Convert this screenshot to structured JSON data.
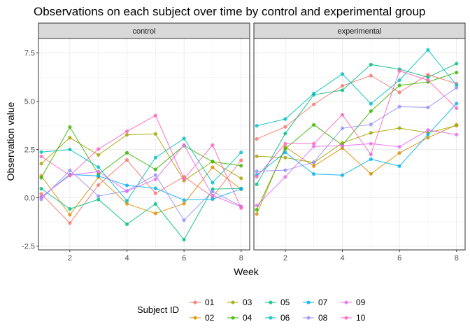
{
  "chart_data": {
    "type": "line",
    "title": "Observations on each subject over time by control and experimental group",
    "xlabel": "Week",
    "ylabel": "Observation value",
    "xlim": [
      0.9,
      8.3
    ],
    "ylim": [
      -2.7,
      8.25
    ],
    "xticks": [
      2,
      4,
      6,
      8
    ],
    "xtick_labels": [
      "2",
      "4",
      "6",
      "8"
    ],
    "yticks": [
      -2.5,
      0,
      2.5,
      5,
      7.5
    ],
    "ytick_labels": [
      "-2.5",
      "0.0",
      "2.5",
      "5.0",
      "7.5"
    ],
    "grid": true,
    "legend": {
      "title": "Subject ID",
      "placement": "bottom",
      "entries": [
        {
          "label": "01",
          "color": "#F8766D"
        },
        {
          "label": "02",
          "color": "#D89000"
        },
        {
          "label": "03",
          "color": "#A3A500"
        },
        {
          "label": "04",
          "color": "#39B600"
        },
        {
          "label": "05",
          "color": "#00BF7D"
        },
        {
          "label": "06",
          "color": "#00BFC4"
        },
        {
          "label": "07",
          "color": "#00B0F6"
        },
        {
          "label": "08",
          "color": "#9590FF"
        },
        {
          "label": "09",
          "color": "#E76BF3"
        },
        {
          "label": "10",
          "color": "#FF62BC"
        }
      ]
    },
    "x": [
      1,
      2,
      3,
      4,
      5,
      6,
      7,
      8
    ],
    "panels": [
      {
        "name": "control",
        "series": [
          {
            "name": "01",
            "values": [
              0.2,
              -1.31,
              0.66,
              1.96,
              0.23,
              1.09,
              0.05,
              1.94
            ]
          },
          {
            "name": "02",
            "values": [
              1.13,
              -0.88,
              1.07,
              -0.31,
              -0.81,
              -0.3,
              1.58,
              0.44
            ]
          },
          {
            "name": "03",
            "values": [
              1.77,
              3.11,
              2.22,
              3.26,
              3.31,
              0.89,
              1.88,
              1.01
            ]
          },
          {
            "name": "04",
            "values": [
              1.04,
              3.66,
              1.22,
              2.33,
              1.47,
              2.7,
              1.87,
              1.66
            ]
          },
          {
            "name": "05",
            "values": [
              0.47,
              -0.58,
              -0.09,
              -1.37,
              -0.32,
              -2.17,
              0.45,
              0.48
            ]
          },
          {
            "name": "06",
            "values": [
              2.37,
              2.5,
              1.59,
              -0.16,
              2.08,
              3.07,
              0.78,
              2.35
            ]
          },
          {
            "name": "07",
            "values": [
              0.03,
              1.21,
              1.13,
              0.64,
              0.49,
              -0.12,
              -0.07,
              0.46
            ]
          },
          {
            "name": "08",
            "values": [
              -0.08,
              1.42,
              0.09,
              0.36,
              1.18,
              -1.16,
              0.33,
              -0.44
            ]
          },
          {
            "name": "09",
            "values": [
              0.05,
              1.16,
              1.36,
              0.34,
              0.96,
              2.73,
              0.12,
              -0.47
            ]
          },
          {
            "name": "10",
            "values": [
              2.14,
              1.15,
              2.52,
              3.44,
              4.26,
              0.97,
              2.73,
              -0.53
            ]
          }
        ]
      },
      {
        "name": "experimental",
        "series": [
          {
            "name": "01",
            "values": [
              3.05,
              3.67,
              4.84,
              5.8,
              6.33,
              5.46,
              6.38,
              5.91
            ]
          },
          {
            "name": "02",
            "values": [
              -0.84,
              2.63,
              1.64,
              2.58,
              1.24,
              2.32,
              3.11,
              3.78
            ]
          },
          {
            "name": "03",
            "values": [
              2.15,
              2.08,
              1.82,
              2.84,
              3.36,
              3.61,
              3.37,
              3.74
            ]
          },
          {
            "name": "04",
            "values": [
              -0.62,
              2.54,
              3.78,
              2.73,
              4.49,
              5.82,
              6.0,
              6.49
            ]
          },
          {
            "name": "05",
            "values": [
              0.7,
              3.33,
              5.34,
              5.57,
              6.9,
              6.66,
              6.24,
              6.95
            ]
          },
          {
            "name": "06",
            "values": [
              3.73,
              4.08,
              5.4,
              6.41,
              4.87,
              6.09,
              7.66,
              5.83
            ]
          },
          {
            "name": "07",
            "values": [
              1.18,
              2.35,
              1.23,
              1.17,
              2.0,
              1.64,
              3.28,
              4.88
            ]
          },
          {
            "name": "08",
            "values": [
              1.37,
              1.43,
              1.84,
              3.6,
              3.8,
              4.72,
              4.68,
              5.7
            ]
          },
          {
            "name": "09",
            "values": [
              -0.4,
              1.08,
              2.66,
              2.7,
              2.8,
              2.64,
              3.51,
              3.27
            ]
          },
          {
            "name": "10",
            "values": [
              1.09,
              2.8,
              2.8,
              4.3,
              2.25,
              6.57,
              6.09,
              4.64
            ]
          }
        ]
      }
    ]
  }
}
